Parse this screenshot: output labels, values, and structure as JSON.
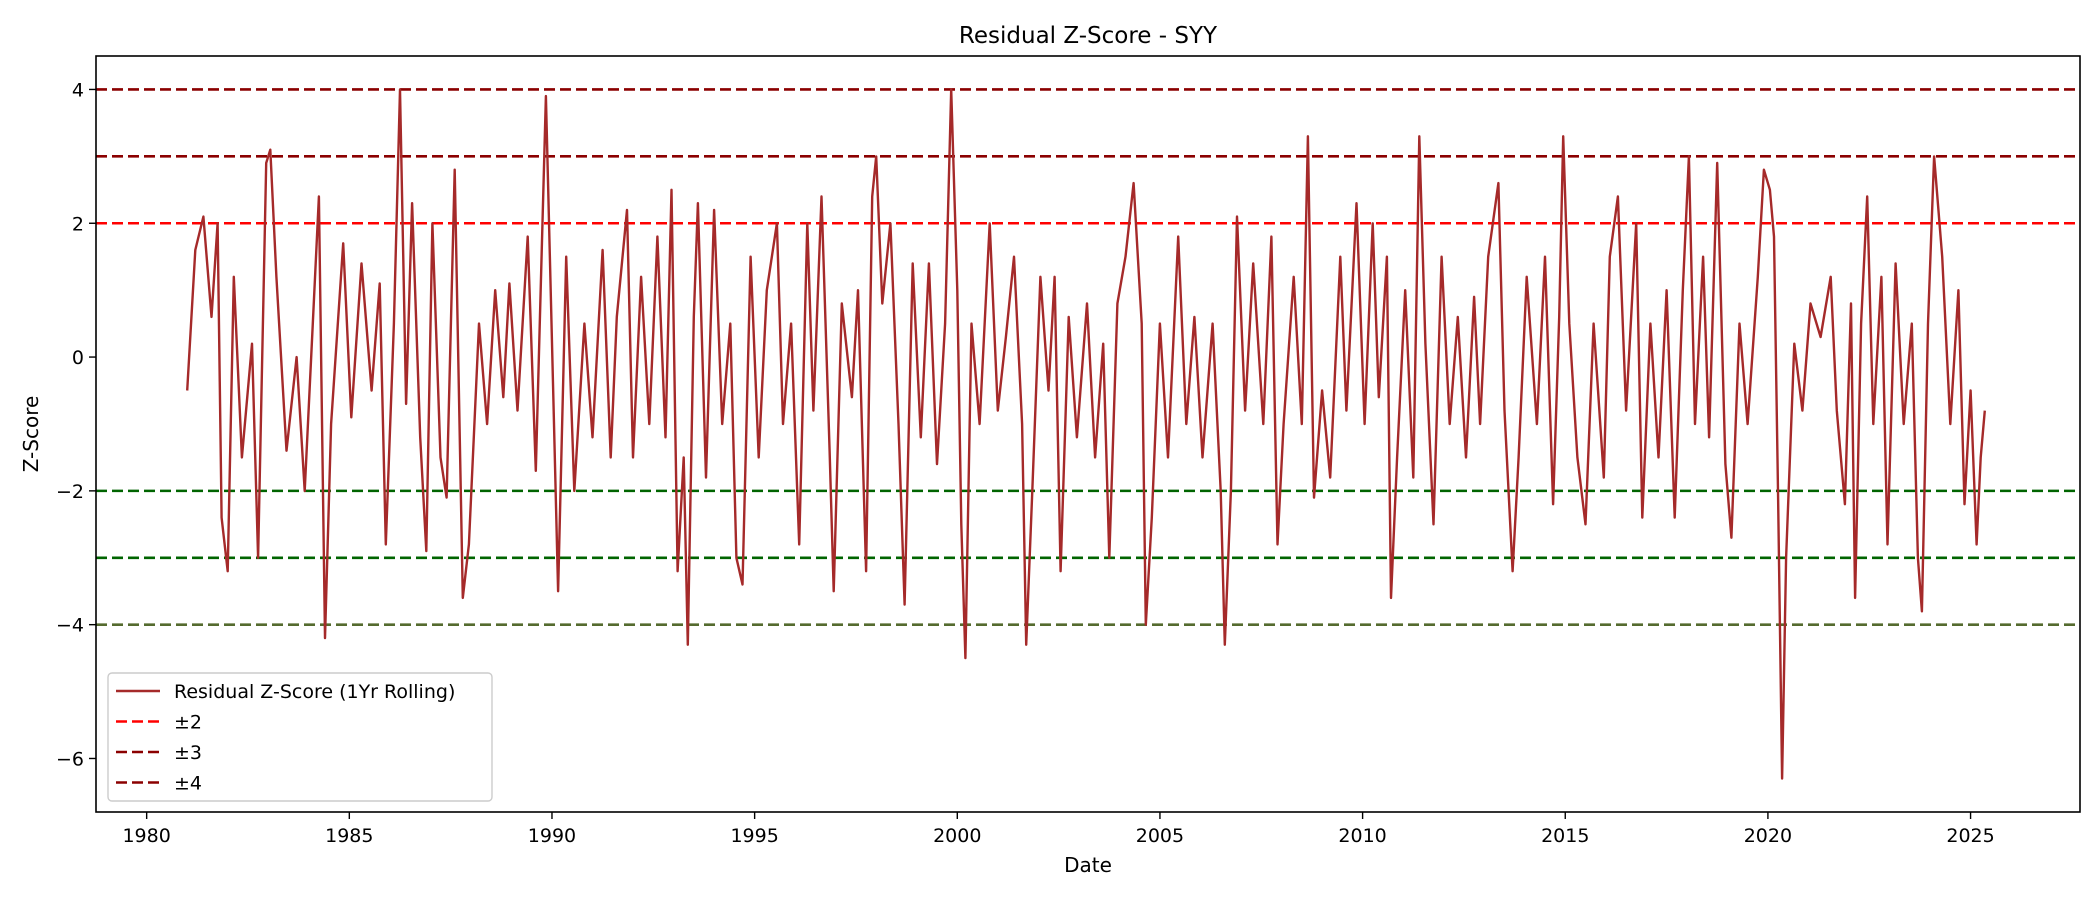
{
  "chart_data": {
    "type": "line",
    "title": "Residual Z-Score - SYY",
    "xlabel": "Date",
    "ylabel": "Z-Score",
    "xlim": [
      1978.75,
      2027.7
    ],
    "ylim": [
      -6.8,
      4.5
    ],
    "x_ticks": [
      "1980",
      "1985",
      "1990",
      "1995",
      "2000",
      "2005",
      "2010",
      "2015",
      "2020",
      "2025"
    ],
    "y_ticks": [
      "−6",
      "−4",
      "−2",
      "0",
      "2",
      "4"
    ],
    "grid": false,
    "legend_position": "lower left",
    "series": [
      {
        "name": "Residual Z-Score (1Yr Rolling)",
        "color": "#a52a2a",
        "style": "solid",
        "points": [
          [
            1981.0,
            -0.5
          ],
          [
            1981.2,
            1.6
          ],
          [
            1981.4,
            2.1
          ],
          [
            1981.6,
            0.6
          ],
          [
            1981.75,
            2.0
          ],
          [
            1981.85,
            -2.4
          ],
          [
            1982.0,
            -3.2
          ],
          [
            1982.15,
            1.2
          ],
          [
            1982.35,
            -1.5
          ],
          [
            1982.6,
            0.2
          ],
          [
            1982.75,
            -3.0
          ],
          [
            1982.95,
            2.9
          ],
          [
            1983.05,
            3.1
          ],
          [
            1983.2,
            1.2
          ],
          [
            1983.45,
            -1.4
          ],
          [
            1983.7,
            0.0
          ],
          [
            1983.9,
            -2.0
          ],
          [
            1984.1,
            0.5
          ],
          [
            1984.25,
            2.4
          ],
          [
            1984.4,
            -4.2
          ],
          [
            1984.55,
            -1.0
          ],
          [
            1984.85,
            1.7
          ],
          [
            1985.05,
            -0.9
          ],
          [
            1985.3,
            1.4
          ],
          [
            1985.55,
            -0.5
          ],
          [
            1985.75,
            1.1
          ],
          [
            1985.9,
            -2.8
          ],
          [
            1986.1,
            0.5
          ],
          [
            1986.25,
            4.0
          ],
          [
            1986.4,
            -0.7
          ],
          [
            1986.55,
            2.3
          ],
          [
            1986.75,
            -1.2
          ],
          [
            1986.9,
            -2.9
          ],
          [
            1987.05,
            2.0
          ],
          [
            1987.25,
            -1.5
          ],
          [
            1987.4,
            -2.1
          ],
          [
            1987.6,
            2.8
          ],
          [
            1987.8,
            -3.6
          ],
          [
            1987.95,
            -2.8
          ],
          [
            1988.2,
            0.5
          ],
          [
            1988.4,
            -1.0
          ],
          [
            1988.6,
            1.0
          ],
          [
            1988.8,
            -0.6
          ],
          [
            1988.95,
            1.1
          ],
          [
            1989.15,
            -0.8
          ],
          [
            1989.4,
            1.8
          ],
          [
            1989.6,
            -1.7
          ],
          [
            1989.85,
            3.9
          ],
          [
            1990.05,
            -1.0
          ],
          [
            1990.15,
            -3.5
          ],
          [
            1990.35,
            1.5
          ],
          [
            1990.55,
            -2.0
          ],
          [
            1990.8,
            0.5
          ],
          [
            1991.0,
            -1.2
          ],
          [
            1991.25,
            1.6
          ],
          [
            1991.45,
            -1.5
          ],
          [
            1991.6,
            0.6
          ],
          [
            1991.85,
            2.2
          ],
          [
            1992.0,
            -1.5
          ],
          [
            1992.2,
            1.2
          ],
          [
            1992.4,
            -1.0
          ],
          [
            1992.6,
            1.8
          ],
          [
            1992.8,
            -1.2
          ],
          [
            1992.95,
            2.5
          ],
          [
            1993.1,
            -3.2
          ],
          [
            1993.25,
            -1.5
          ],
          [
            1993.35,
            -4.3
          ],
          [
            1993.5,
            0.6
          ],
          [
            1993.6,
            2.3
          ],
          [
            1993.8,
            -1.8
          ],
          [
            1994.0,
            2.2
          ],
          [
            1994.2,
            -1.0
          ],
          [
            1994.4,
            0.5
          ],
          [
            1994.55,
            -3.0
          ],
          [
            1994.7,
            -3.4
          ],
          [
            1994.9,
            1.5
          ],
          [
            1995.1,
            -1.5
          ],
          [
            1995.3,
            1.0
          ],
          [
            1995.55,
            2.0
          ],
          [
            1995.7,
            -1.0
          ],
          [
            1995.9,
            0.5
          ],
          [
            1996.1,
            -2.8
          ],
          [
            1996.3,
            2.0
          ],
          [
            1996.45,
            -0.8
          ],
          [
            1996.65,
            2.4
          ],
          [
            1996.85,
            -1.4
          ],
          [
            1996.95,
            -3.5
          ],
          [
            1997.15,
            0.8
          ],
          [
            1997.4,
            -0.6
          ],
          [
            1997.55,
            1.0
          ],
          [
            1997.75,
            -3.2
          ],
          [
            1997.9,
            2.4
          ],
          [
            1998.0,
            3.0
          ],
          [
            1998.15,
            0.8
          ],
          [
            1998.35,
            2.0
          ],
          [
            1998.55,
            -1.0
          ],
          [
            1998.7,
            -3.7
          ],
          [
            1998.9,
            1.4
          ],
          [
            1999.1,
            -1.2
          ],
          [
            1999.3,
            1.4
          ],
          [
            1999.5,
            -1.6
          ],
          [
            1999.7,
            0.5
          ],
          [
            1999.85,
            4.0
          ],
          [
            2000.0,
            1.0
          ],
          [
            2000.1,
            -2.5
          ],
          [
            2000.2,
            -4.5
          ],
          [
            2000.35,
            0.5
          ],
          [
            2000.55,
            -1.0
          ],
          [
            2000.8,
            2.0
          ],
          [
            2001.0,
            -0.8
          ],
          [
            2001.2,
            0.3
          ],
          [
            2001.4,
            1.5
          ],
          [
            2001.6,
            -1.0
          ],
          [
            2001.7,
            -4.3
          ],
          [
            2001.85,
            -2.0
          ],
          [
            2002.05,
            1.2
          ],
          [
            2002.25,
            -0.5
          ],
          [
            2002.4,
            1.2
          ],
          [
            2002.55,
            -3.2
          ],
          [
            2002.75,
            0.6
          ],
          [
            2002.95,
            -1.2
          ],
          [
            2003.2,
            0.8
          ],
          [
            2003.4,
            -1.5
          ],
          [
            2003.6,
            0.2
          ],
          [
            2003.75,
            -3.0
          ],
          [
            2003.95,
            0.8
          ],
          [
            2004.15,
            1.5
          ],
          [
            2004.35,
            2.6
          ],
          [
            2004.55,
            0.5
          ],
          [
            2004.65,
            -4.0
          ],
          [
            2004.8,
            -2.4
          ],
          [
            2005.0,
            0.5
          ],
          [
            2005.2,
            -1.5
          ],
          [
            2005.45,
            1.8
          ],
          [
            2005.65,
            -1.0
          ],
          [
            2005.85,
            0.6
          ],
          [
            2006.05,
            -1.5
          ],
          [
            2006.3,
            0.5
          ],
          [
            2006.5,
            -2.0
          ],
          [
            2006.6,
            -4.3
          ],
          [
            2006.75,
            -2.0
          ],
          [
            2006.9,
            2.1
          ],
          [
            2007.1,
            -0.8
          ],
          [
            2007.3,
            1.4
          ],
          [
            2007.55,
            -1.0
          ],
          [
            2007.75,
            1.8
          ],
          [
            2007.9,
            -2.8
          ],
          [
            2008.05,
            -1.0
          ],
          [
            2008.3,
            1.2
          ],
          [
            2008.5,
            -1.0
          ],
          [
            2008.65,
            3.3
          ],
          [
            2008.8,
            -2.1
          ],
          [
            2009.0,
            -0.5
          ],
          [
            2009.2,
            -1.8
          ],
          [
            2009.45,
            1.5
          ],
          [
            2009.6,
            -0.8
          ],
          [
            2009.85,
            2.3
          ],
          [
            2010.05,
            -1.0
          ],
          [
            2010.25,
            2.0
          ],
          [
            2010.4,
            -0.6
          ],
          [
            2010.6,
            1.5
          ],
          [
            2010.7,
            -3.6
          ],
          [
            2010.85,
            -1.5
          ],
          [
            2011.05,
            1.0
          ],
          [
            2011.25,
            -1.8
          ],
          [
            2011.4,
            3.3
          ],
          [
            2011.55,
            0.2
          ],
          [
            2011.75,
            -2.5
          ],
          [
            2011.95,
            1.5
          ],
          [
            2012.15,
            -1.0
          ],
          [
            2012.35,
            0.6
          ],
          [
            2012.55,
            -1.5
          ],
          [
            2012.75,
            0.9
          ],
          [
            2012.9,
            -1.0
          ],
          [
            2013.1,
            1.5
          ],
          [
            2013.35,
            2.6
          ],
          [
            2013.5,
            -0.8
          ],
          [
            2013.7,
            -3.2
          ],
          [
            2013.85,
            -1.5
          ],
          [
            2014.05,
            1.2
          ],
          [
            2014.3,
            -1.0
          ],
          [
            2014.5,
            1.5
          ],
          [
            2014.7,
            -2.2
          ],
          [
            2014.85,
            0.6
          ],
          [
            2014.95,
            3.3
          ],
          [
            2015.1,
            0.5
          ],
          [
            2015.3,
            -1.5
          ],
          [
            2015.5,
            -2.5
          ],
          [
            2015.7,
            0.5
          ],
          [
            2015.95,
            -1.8
          ],
          [
            2016.1,
            1.5
          ],
          [
            2016.3,
            2.4
          ],
          [
            2016.5,
            -0.8
          ],
          [
            2016.75,
            2.0
          ],
          [
            2016.9,
            -2.4
          ],
          [
            2017.1,
            0.5
          ],
          [
            2017.3,
            -1.5
          ],
          [
            2017.5,
            1.0
          ],
          [
            2017.7,
            -2.4
          ],
          [
            2017.9,
            1.0
          ],
          [
            2018.05,
            3.0
          ],
          [
            2018.2,
            -1.0
          ],
          [
            2018.4,
            1.5
          ],
          [
            2018.55,
            -1.2
          ],
          [
            2018.75,
            2.9
          ],
          [
            2018.95,
            -1.6
          ],
          [
            2019.1,
            -2.7
          ],
          [
            2019.3,
            0.5
          ],
          [
            2019.5,
            -1.0
          ],
          [
            2019.75,
            1.2
          ],
          [
            2019.9,
            2.8
          ],
          [
            2020.05,
            2.5
          ],
          [
            2020.15,
            1.8
          ],
          [
            2020.25,
            -2.0
          ],
          [
            2020.35,
            -6.3
          ],
          [
            2020.45,
            -3.0
          ],
          [
            2020.65,
            0.2
          ],
          [
            2020.85,
            -0.8
          ],
          [
            2021.05,
            0.8
          ],
          [
            2021.3,
            0.3
          ],
          [
            2021.55,
            1.2
          ],
          [
            2021.7,
            -0.8
          ],
          [
            2021.9,
            -2.2
          ],
          [
            2022.05,
            0.8
          ],
          [
            2022.15,
            -3.6
          ],
          [
            2022.3,
            0.5
          ],
          [
            2022.45,
            2.4
          ],
          [
            2022.6,
            -1.0
          ],
          [
            2022.8,
            1.2
          ],
          [
            2022.95,
            -2.8
          ],
          [
            2023.15,
            1.4
          ],
          [
            2023.35,
            -1.0
          ],
          [
            2023.55,
            0.5
          ],
          [
            2023.7,
            -3.0
          ],
          [
            2023.8,
            -3.8
          ],
          [
            2023.95,
            0.5
          ],
          [
            2024.1,
            3.0
          ],
          [
            2024.3,
            1.5
          ],
          [
            2024.5,
            -1.0
          ],
          [
            2024.7,
            1.0
          ],
          [
            2024.85,
            -2.2
          ],
          [
            2025.0,
            -0.5
          ],
          [
            2025.15,
            -2.8
          ],
          [
            2025.25,
            -1.5
          ],
          [
            2025.35,
            -0.8
          ]
        ]
      },
      {
        "name": "±2",
        "color": "#ff0000",
        "style": "dashed",
        "value": 2,
        "symmetric": true
      },
      {
        "name": "±3",
        "color": "#8b0000",
        "style": "dashed",
        "value": 3,
        "symmetric": true
      },
      {
        "name": "±4",
        "color": "#8b0000",
        "style": "dashed",
        "value": 4,
        "symmetric": true
      }
    ],
    "lower_band_colors": {
      "-2": "#006400",
      "-3": "#006400",
      "-4": "#556b2f"
    }
  }
}
